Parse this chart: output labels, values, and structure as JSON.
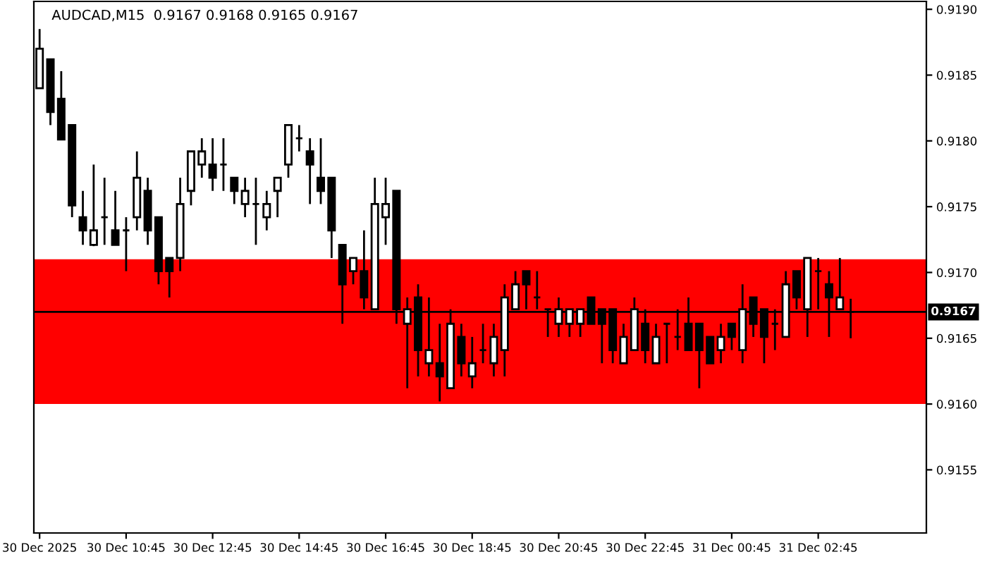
{
  "chart_data": {
    "type": "candlestick",
    "title": "AUDCAD,M15  0.9167 0.9168 0.9165 0.9167",
    "x": [
      "2025-12-30T08:45",
      "2025-12-30T09:00",
      "2025-12-30T09:15",
      "2025-12-30T09:30",
      "2025-12-30T09:45",
      "2025-12-30T10:00",
      "2025-12-30T10:15",
      "2025-12-30T10:30",
      "2025-12-30T10:45",
      "2025-12-30T11:00",
      "2025-12-30T11:15",
      "2025-12-30T11:30",
      "2025-12-30T11:45",
      "2025-12-30T12:00",
      "2025-12-30T12:15",
      "2025-12-30T12:30",
      "2025-12-30T12:45",
      "2025-12-30T13:00",
      "2025-12-30T13:15",
      "2025-12-30T13:30",
      "2025-12-30T13:45",
      "2025-12-30T14:00",
      "2025-12-30T14:15",
      "2025-12-30T14:30",
      "2025-12-30T14:45",
      "2025-12-30T15:00",
      "2025-12-30T15:15",
      "2025-12-30T15:30",
      "2025-12-30T15:45",
      "2025-12-30T16:00",
      "2025-12-30T16:15",
      "2025-12-30T16:30",
      "2025-12-30T16:45",
      "2025-12-30T17:00",
      "2025-12-30T17:15",
      "2025-12-30T17:30",
      "2025-12-30T17:45",
      "2025-12-30T18:00",
      "2025-12-30T18:15",
      "2025-12-30T18:30",
      "2025-12-30T18:45",
      "2025-12-30T19:00",
      "2025-12-30T19:15",
      "2025-12-30T19:30",
      "2025-12-30T19:45",
      "2025-12-30T20:00",
      "2025-12-30T20:15",
      "2025-12-30T20:30",
      "2025-12-30T20:45",
      "2025-12-30T21:00",
      "2025-12-30T21:15",
      "2025-12-30T21:30",
      "2025-12-30T21:45",
      "2025-12-30T22:00",
      "2025-12-30T22:15",
      "2025-12-30T22:30",
      "2025-12-30T22:45",
      "2025-12-30T23:00",
      "2025-12-30T23:15",
      "2025-12-30T23:30",
      "2025-12-30T23:45",
      "2025-12-31T00:00",
      "2025-12-31T00:15",
      "2025-12-31T00:30",
      "2025-12-31T00:45",
      "2025-12-31T01:00",
      "2025-12-31T01:15",
      "2025-12-31T01:30",
      "2025-12-31T01:45",
      "2025-12-31T02:00",
      "2025-12-31T02:15",
      "2025-12-31T02:30",
      "2025-12-31T02:45",
      "2025-12-31T03:00",
      "2025-12-31T03:15",
      "2025-12-31T03:30"
    ],
    "xlim": [
      "2025-12-30T08:37",
      "2025-12-31T05:15"
    ],
    "xticks": [
      {
        "value": "2025-12-30T08:45",
        "label": "30 Dec 2025"
      },
      {
        "value": "2025-12-30T10:45",
        "label": "30 Dec 10:45"
      },
      {
        "value": "2025-12-30T12:45",
        "label": "30 Dec 12:45"
      },
      {
        "value": "2025-12-30T14:45",
        "label": "30 Dec 14:45"
      },
      {
        "value": "2025-12-30T16:45",
        "label": "30 Dec 16:45"
      },
      {
        "value": "2025-12-30T18:45",
        "label": "30 Dec 18:45"
      },
      {
        "value": "2025-12-30T20:45",
        "label": "30 Dec 20:45"
      },
      {
        "value": "2025-12-30T22:45",
        "label": "30 Dec 22:45"
      },
      {
        "value": "2025-12-31T00:45",
        "label": "31 Dec 00:45"
      },
      {
        "value": "2025-12-31T02:45",
        "label": "31 Dec 02:45"
      }
    ],
    "ohlc": [
      [
        0.9184,
        0.91885,
        0.9184,
        0.9187
      ],
      [
        0.91862,
        0.91862,
        0.91812,
        0.91822
      ],
      [
        0.91832,
        0.91853,
        0.91801,
        0.91801
      ],
      [
        0.91812,
        0.91812,
        0.91742,
        0.91751
      ],
      [
        0.91742,
        0.91762,
        0.91721,
        0.91732
      ],
      [
        0.91721,
        0.91782,
        0.9172,
        0.91732
      ],
      [
        0.91742,
        0.91772,
        0.91721,
        0.91742
      ],
      [
        0.91732,
        0.91762,
        0.91721,
        0.91721
      ],
      [
        0.91732,
        0.91742,
        0.91701,
        0.91732
      ],
      [
        0.91742,
        0.91792,
        0.91732,
        0.91772
      ],
      [
        0.91762,
        0.91772,
        0.91721,
        0.91732
      ],
      [
        0.91742,
        0.91742,
        0.91691,
        0.91701
      ],
      [
        0.91711,
        0.91711,
        0.91681,
        0.91701
      ],
      [
        0.91711,
        0.91772,
        0.91701,
        0.91752
      ],
      [
        0.91762,
        0.91792,
        0.91751,
        0.91792
      ],
      [
        0.91782,
        0.91802,
        0.91772,
        0.91792
      ],
      [
        0.91782,
        0.91802,
        0.91762,
        0.91772
      ],
      [
        0.91782,
        0.91802,
        0.91762,
        0.91782
      ],
      [
        0.91772,
        0.91772,
        0.91752,
        0.91762
      ],
      [
        0.91752,
        0.91772,
        0.91742,
        0.91762
      ],
      [
        0.91752,
        0.91772,
        0.91721,
        0.91752
      ],
      [
        0.91742,
        0.91762,
        0.91732,
        0.91752
      ],
      [
        0.91762,
        0.91772,
        0.91742,
        0.91772
      ],
      [
        0.91782,
        0.91812,
        0.91772,
        0.91812
      ],
      [
        0.91802,
        0.91812,
        0.91792,
        0.91802
      ],
      [
        0.91792,
        0.91802,
        0.91752,
        0.91782
      ],
      [
        0.91772,
        0.91802,
        0.91752,
        0.91762
      ],
      [
        0.91772,
        0.91772,
        0.91711,
        0.91732
      ],
      [
        0.91721,
        0.91721,
        0.91661,
        0.91691
      ],
      [
        0.91701,
        0.91711,
        0.91691,
        0.91711
      ],
      [
        0.91701,
        0.91732,
        0.91672,
        0.91681
      ],
      [
        0.91672,
        0.91772,
        0.91672,
        0.91752
      ],
      [
        0.91742,
        0.91772,
        0.91721,
        0.91752
      ],
      [
        0.91762,
        0.91762,
        0.91661,
        0.91672
      ],
      [
        0.91661,
        0.91681,
        0.91612,
        0.91672
      ],
      [
        0.91681,
        0.91691,
        0.91621,
        0.91641
      ],
      [
        0.91631,
        0.91681,
        0.91621,
        0.91641
      ],
      [
        0.91631,
        0.91661,
        0.91602,
        0.91621
      ],
      [
        0.91612,
        0.91672,
        0.91612,
        0.91661
      ],
      [
        0.91651,
        0.91661,
        0.91621,
        0.91631
      ],
      [
        0.91621,
        0.91651,
        0.91612,
        0.91631
      ],
      [
        0.91641,
        0.91661,
        0.91631,
        0.91641
      ],
      [
        0.91631,
        0.91661,
        0.91621,
        0.91651
      ],
      [
        0.91641,
        0.91691,
        0.91621,
        0.91681
      ],
      [
        0.91672,
        0.91701,
        0.91672,
        0.91691
      ],
      [
        0.91701,
        0.91701,
        0.91672,
        0.91691
      ],
      [
        0.91681,
        0.91701,
        0.91672,
        0.91681
      ],
      [
        0.91672,
        0.91672,
        0.91651,
        0.91672
      ],
      [
        0.91661,
        0.91681,
        0.91651,
        0.91672
      ],
      [
        0.91661,
        0.91672,
        0.91651,
        0.91672
      ],
      [
        0.91661,
        0.91672,
        0.91651,
        0.91672
      ],
      [
        0.91681,
        0.91681,
        0.91661,
        0.91661
      ],
      [
        0.91672,
        0.91672,
        0.91631,
        0.91661
      ],
      [
        0.91672,
        0.91672,
        0.91631,
        0.91641
      ],
      [
        0.91631,
        0.91661,
        0.91631,
        0.91651
      ],
      [
        0.91641,
        0.91681,
        0.91641,
        0.91672
      ],
      [
        0.91661,
        0.91672,
        0.91631,
        0.91641
      ],
      [
        0.91631,
        0.91661,
        0.91631,
        0.91651
      ],
      [
        0.91661,
        0.91661,
        0.91631,
        0.91661
      ],
      [
        0.91651,
        0.91672,
        0.91641,
        0.91651
      ],
      [
        0.91661,
        0.91681,
        0.91641,
        0.91641
      ],
      [
        0.91661,
        0.91661,
        0.91612,
        0.91641
      ],
      [
        0.91651,
        0.91651,
        0.91631,
        0.91631
      ],
      [
        0.91641,
        0.91661,
        0.91631,
        0.91651
      ],
      [
        0.91661,
        0.91661,
        0.91641,
        0.91651
      ],
      [
        0.91641,
        0.91691,
        0.91631,
        0.91672
      ],
      [
        0.91681,
        0.91681,
        0.91651,
        0.91661
      ],
      [
        0.91672,
        0.91672,
        0.91631,
        0.91651
      ],
      [
        0.91661,
        0.91672,
        0.91641,
        0.91661
      ],
      [
        0.91651,
        0.91701,
        0.91651,
        0.91691
      ],
      [
        0.91701,
        0.91701,
        0.91672,
        0.91681
      ],
      [
        0.91672,
        0.91711,
        0.91651,
        0.91711
      ],
      [
        0.91701,
        0.91711,
        0.91672,
        0.91701
      ],
      [
        0.91691,
        0.91701,
        0.91651,
        0.91681
      ],
      [
        0.91672,
        0.91711,
        0.91672,
        0.91681
      ],
      [
        0.9167,
        0.9168,
        0.9165,
        0.9167
      ]
    ],
    "ylim": [
      0.91502,
      0.91906
    ],
    "yticks": [
      {
        "value": 0.9155,
        "label": "0.9155"
      },
      {
        "value": 0.916,
        "label": "0.9160"
      },
      {
        "value": 0.9165,
        "label": "0.9165"
      },
      {
        "value": 0.917,
        "label": "0.9170"
      },
      {
        "value": 0.9175,
        "label": "0.9175"
      },
      {
        "value": 0.918,
        "label": "0.9180"
      },
      {
        "value": 0.9185,
        "label": "0.9185"
      },
      {
        "value": 0.919,
        "label": "0.9190"
      }
    ],
    "ref_lines": [
      {
        "axis": "y",
        "value": 0.9167,
        "label": "0.9167",
        "color": "#000000"
      }
    ],
    "bands": [
      {
        "axis": "y",
        "from": 0.916,
        "to": 0.9171,
        "color": "#ff0000"
      }
    ],
    "grid": false,
    "legend": false
  }
}
